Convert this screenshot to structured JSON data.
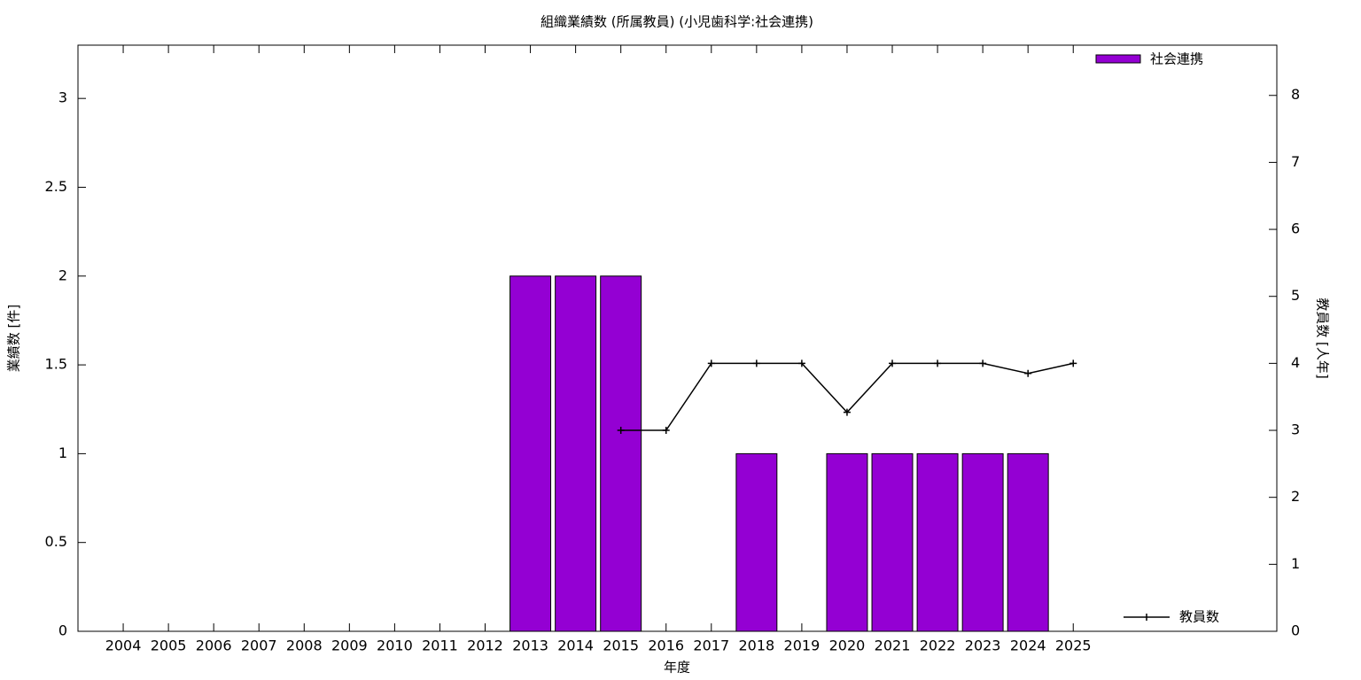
{
  "chart_data": {
    "type": "bar",
    "title": "組織業績数 (所属教員) (小児歯科学:社会連携)",
    "x_label": "年度",
    "y_label": "業績数 [件]",
    "y2_label": "教員数 [人年]",
    "categories": [
      "2004",
      "2005",
      "2006",
      "2007",
      "2008",
      "2009",
      "2010",
      "2011",
      "2012",
      "2013",
      "2014",
      "2015",
      "2016",
      "2017",
      "2018",
      "2019",
      "2020",
      "2021",
      "2022",
      "2023",
      "2024",
      "2025"
    ],
    "series": [
      {
        "name": "社会連携",
        "type": "bar",
        "color": "#9400d3",
        "values": [
          0,
          0,
          0,
          0,
          0,
          0,
          0,
          0,
          0,
          2,
          2,
          2,
          0,
          0,
          1,
          0,
          1,
          1,
          1,
          1,
          1,
          0
        ]
      },
      {
        "name": "教員数",
        "type": "line",
        "axis": "y2",
        "color": "#000000",
        "values": [
          null,
          null,
          null,
          null,
          null,
          null,
          null,
          null,
          null,
          null,
          null,
          3,
          3,
          4,
          4,
          4,
          3.27,
          4,
          4,
          4,
          3.85,
          4
        ]
      }
    ],
    "ylim": [
      0,
      3.3
    ],
    "yticks": [
      0,
      0.5,
      1,
      1.5,
      2,
      2.5,
      3
    ],
    "y2lim": [
      0,
      8.75
    ],
    "y2ticks": [
      0,
      1,
      2,
      3,
      4,
      5,
      6,
      7,
      8
    ]
  }
}
